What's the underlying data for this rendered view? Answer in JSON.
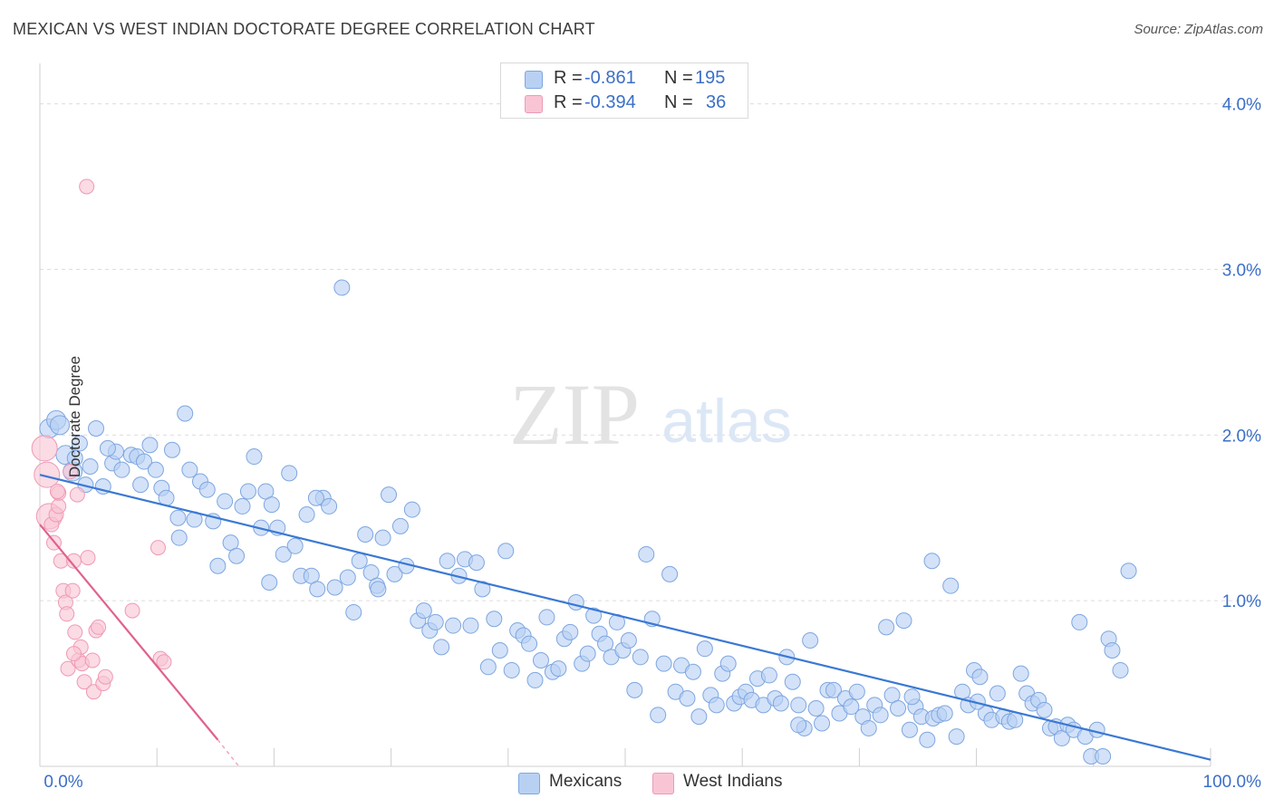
{
  "header": {
    "title": "MEXICAN VS WEST INDIAN DOCTORATE DEGREE CORRELATION CHART",
    "source": "Source: ZipAtlas.com"
  },
  "watermark": {
    "zip": "ZIP",
    "atlas": "atlas"
  },
  "stats": [
    {
      "r_label": "R =",
      "r_value": "-0.861",
      "n_label": "N =",
      "n_value": "195",
      "color": "#4a86d8"
    },
    {
      "r_label": "R =",
      "r_value": "-0.394",
      "n_label": "N =",
      "n_value": "36",
      "color": "#e6789c"
    }
  ],
  "legend": [
    {
      "label": "Mexicans",
      "fill": "#b8d1f3",
      "stroke": "#7ea6e0"
    },
    {
      "label": "West Indians",
      "fill": "#f9c5d4",
      "stroke": "#ee9ab5"
    }
  ],
  "chart_data": {
    "type": "scatter",
    "title": "MEXICAN VS WEST INDIAN DOCTORATE DEGREE CORRELATION CHART",
    "xlabel": "",
    "ylabel": "Doctorate Degree",
    "xlim": [
      0,
      100
    ],
    "ylim": [
      0,
      4.2
    ],
    "x_tick_labels": [
      "0.0%",
      "100.0%"
    ],
    "y_ticks": [
      1.0,
      2.0,
      3.0,
      4.0
    ],
    "y_tick_labels": [
      "1.0%",
      "2.0%",
      "3.0%",
      "4.0%"
    ],
    "grid": true,
    "series": [
      {
        "name": "Mexicans",
        "color": "#4a86d8",
        "fill": "#b8d1f3",
        "trend": {
          "x": [
            0,
            100
          ],
          "y": [
            1.76,
            0.04
          ]
        },
        "points": [
          [
            0.8,
            2.04
          ],
          [
            1.4,
            2.09
          ],
          [
            1.7,
            2.06
          ],
          [
            2.2,
            1.88
          ],
          [
            3.4,
            1.95
          ],
          [
            2.8,
            1.78
          ],
          [
            3.9,
            1.7
          ],
          [
            4.3,
            1.81
          ],
          [
            4.8,
            2.04
          ],
          [
            5.4,
            1.69
          ],
          [
            6.2,
            1.83
          ],
          [
            6.5,
            1.9
          ],
          [
            7.0,
            1.79
          ],
          [
            7.8,
            1.88
          ],
          [
            8.3,
            1.87
          ],
          [
            8.6,
            1.7
          ],
          [
            8.9,
            1.84
          ],
          [
            9.4,
            1.94
          ],
          [
            9.9,
            1.79
          ],
          [
            10.4,
            1.68
          ],
          [
            10.8,
            1.62
          ],
          [
            11.3,
            1.91
          ],
          [
            11.9,
            1.38
          ],
          [
            12.4,
            2.13
          ],
          [
            12.8,
            1.79
          ],
          [
            13.2,
            1.49
          ],
          [
            13.7,
            1.72
          ],
          [
            14.3,
            1.67
          ],
          [
            14.8,
            1.48
          ],
          [
            15.2,
            1.21
          ],
          [
            15.8,
            1.6
          ],
          [
            16.3,
            1.35
          ],
          [
            16.8,
            1.27
          ],
          [
            17.3,
            1.57
          ],
          [
            17.8,
            1.66
          ],
          [
            18.3,
            1.87
          ],
          [
            18.9,
            1.44
          ],
          [
            19.3,
            1.66
          ],
          [
            19.8,
            1.58
          ],
          [
            20.3,
            1.44
          ],
          [
            20.8,
            1.28
          ],
          [
            21.3,
            1.77
          ],
          [
            21.8,
            1.33
          ],
          [
            22.3,
            1.15
          ],
          [
            22.8,
            1.52
          ],
          [
            23.2,
            1.15
          ],
          [
            23.7,
            1.07
          ],
          [
            24.2,
            1.62
          ],
          [
            24.7,
            1.57
          ],
          [
            25.2,
            1.08
          ],
          [
            25.8,
            2.89
          ],
          [
            26.3,
            1.14
          ],
          [
            26.8,
            0.93
          ],
          [
            27.3,
            1.24
          ],
          [
            27.8,
            1.4
          ],
          [
            28.3,
            1.17
          ],
          [
            28.8,
            1.09
          ],
          [
            29.3,
            1.38
          ],
          [
            29.8,
            1.64
          ],
          [
            30.3,
            1.16
          ],
          [
            30.8,
            1.45
          ],
          [
            31.3,
            1.21
          ],
          [
            31.8,
            1.55
          ],
          [
            32.3,
            0.88
          ],
          [
            32.8,
            0.94
          ],
          [
            33.3,
            0.82
          ],
          [
            33.8,
            0.87
          ],
          [
            34.3,
            0.72
          ],
          [
            34.8,
            1.24
          ],
          [
            35.3,
            0.85
          ],
          [
            35.8,
            1.15
          ],
          [
            36.3,
            1.25
          ],
          [
            36.8,
            0.85
          ],
          [
            37.3,
            1.23
          ],
          [
            37.8,
            1.07
          ],
          [
            38.3,
            0.6
          ],
          [
            38.8,
            0.89
          ],
          [
            39.3,
            0.7
          ],
          [
            39.8,
            1.3
          ],
          [
            40.3,
            0.58
          ],
          [
            40.8,
            0.82
          ],
          [
            41.3,
            0.79
          ],
          [
            41.8,
            0.74
          ],
          [
            42.3,
            0.52
          ],
          [
            42.8,
            0.64
          ],
          [
            43.3,
            0.9
          ],
          [
            43.8,
            0.57
          ],
          [
            44.3,
            0.59
          ],
          [
            44.8,
            0.77
          ],
          [
            45.3,
            0.81
          ],
          [
            45.8,
            0.99
          ],
          [
            46.3,
            0.62
          ],
          [
            46.8,
            0.68
          ],
          [
            47.3,
            0.91
          ],
          [
            47.8,
            0.8
          ],
          [
            48.3,
            0.74
          ],
          [
            48.8,
            0.66
          ],
          [
            49.3,
            0.87
          ],
          [
            49.8,
            0.7
          ],
          [
            50.3,
            0.76
          ],
          [
            50.8,
            0.46
          ],
          [
            51.3,
            0.66
          ],
          [
            51.8,
            1.28
          ],
          [
            52.3,
            0.89
          ],
          [
            52.8,
            0.31
          ],
          [
            53.3,
            0.62
          ],
          [
            53.8,
            1.16
          ],
          [
            54.3,
            0.45
          ],
          [
            54.8,
            0.61
          ],
          [
            55.3,
            0.41
          ],
          [
            55.8,
            0.57
          ],
          [
            56.3,
            0.3
          ],
          [
            56.8,
            0.71
          ],
          [
            57.3,
            0.43
          ],
          [
            57.8,
            0.37
          ],
          [
            58.3,
            0.56
          ],
          [
            58.8,
            0.62
          ],
          [
            59.3,
            0.38
          ],
          [
            59.8,
            0.42
          ],
          [
            60.3,
            0.45
          ],
          [
            60.8,
            0.4
          ],
          [
            61.3,
            0.53
          ],
          [
            61.8,
            0.37
          ],
          [
            62.3,
            0.55
          ],
          [
            62.8,
            0.41
          ],
          [
            63.3,
            0.38
          ],
          [
            63.8,
            0.66
          ],
          [
            64.3,
            0.51
          ],
          [
            64.8,
            0.37
          ],
          [
            65.3,
            0.23
          ],
          [
            65.8,
            0.76
          ],
          [
            66.3,
            0.35
          ],
          [
            66.8,
            0.26
          ],
          [
            67.3,
            0.46
          ],
          [
            67.8,
            0.46
          ],
          [
            68.3,
            0.32
          ],
          [
            68.8,
            0.41
          ],
          [
            69.3,
            0.36
          ],
          [
            69.8,
            0.45
          ],
          [
            70.3,
            0.3
          ],
          [
            70.8,
            0.23
          ],
          [
            71.3,
            0.37
          ],
          [
            71.8,
            0.31
          ],
          [
            72.3,
            0.84
          ],
          [
            72.8,
            0.43
          ],
          [
            73.3,
            0.35
          ],
          [
            73.8,
            0.88
          ],
          [
            74.3,
            0.22
          ],
          [
            74.8,
            0.36
          ],
          [
            75.3,
            0.3
          ],
          [
            75.8,
            0.16
          ],
          [
            76.3,
            0.29
          ],
          [
            76.8,
            0.31
          ],
          [
            77.3,
            0.32
          ],
          [
            77.8,
            1.09
          ],
          [
            78.3,
            0.18
          ],
          [
            78.8,
            0.45
          ],
          [
            79.3,
            0.37
          ],
          [
            79.8,
            0.58
          ],
          [
            80.3,
            0.54
          ],
          [
            80.8,
            0.32
          ],
          [
            81.3,
            0.28
          ],
          [
            81.8,
            0.44
          ],
          [
            82.3,
            0.3
          ],
          [
            82.8,
            0.27
          ],
          [
            83.3,
            0.28
          ],
          [
            83.8,
            0.56
          ],
          [
            84.3,
            0.44
          ],
          [
            84.8,
            0.38
          ],
          [
            85.3,
            0.4
          ],
          [
            85.8,
            0.34
          ],
          [
            86.3,
            0.23
          ],
          [
            86.8,
            0.24
          ],
          [
            87.3,
            0.17
          ],
          [
            87.8,
            0.25
          ],
          [
            88.3,
            0.22
          ],
          [
            88.8,
            0.87
          ],
          [
            89.3,
            0.18
          ],
          [
            89.8,
            0.06
          ],
          [
            90.3,
            0.22
          ],
          [
            90.8,
            0.06
          ],
          [
            91.3,
            0.77
          ],
          [
            91.6,
            0.7
          ],
          [
            92.3,
            0.58
          ],
          [
            93.0,
            1.18
          ],
          [
            76.2,
            1.24
          ],
          [
            64.8,
            0.25
          ],
          [
            74.5,
            0.42
          ],
          [
            80.1,
            0.39
          ],
          [
            3.0,
            1.86
          ],
          [
            5.8,
            1.92
          ],
          [
            11.8,
            1.5
          ],
          [
            19.6,
            1.11
          ],
          [
            23.6,
            1.62
          ],
          [
            28.9,
            1.07
          ]
        ]
      },
      {
        "name": "West Indians",
        "color": "#e6789c",
        "fill": "#f9c5d4",
        "trend": {
          "x": [
            0,
            15.2
          ],
          "y": [
            1.46,
            0.16
          ]
        },
        "trend_dashed_to": {
          "x": 17.0,
          "y": 0.0
        },
        "points": [
          [
            0.4,
            1.92
          ],
          [
            0.6,
            1.76
          ],
          [
            0.8,
            1.51
          ],
          [
            1.0,
            1.46
          ],
          [
            1.2,
            1.35
          ],
          [
            1.4,
            1.52
          ],
          [
            1.6,
            1.57
          ],
          [
            1.6,
            1.65
          ],
          [
            1.8,
            1.24
          ],
          [
            2.0,
            1.06
          ],
          [
            2.2,
            0.99
          ],
          [
            2.3,
            0.92
          ],
          [
            2.4,
            0.59
          ],
          [
            2.6,
            1.78
          ],
          [
            2.8,
            1.06
          ],
          [
            2.9,
            1.24
          ],
          [
            3.0,
            0.81
          ],
          [
            3.2,
            1.64
          ],
          [
            3.3,
            0.64
          ],
          [
            3.5,
            0.72
          ],
          [
            3.6,
            0.62
          ],
          [
            3.8,
            0.51
          ],
          [
            4.0,
            3.5
          ],
          [
            4.1,
            1.26
          ],
          [
            4.5,
            0.64
          ],
          [
            4.6,
            0.45
          ],
          [
            4.8,
            0.82
          ],
          [
            5.0,
            0.84
          ],
          [
            5.4,
            0.5
          ],
          [
            5.6,
            0.54
          ],
          [
            7.9,
            0.94
          ],
          [
            10.1,
            1.32
          ],
          [
            10.3,
            0.65
          ],
          [
            10.6,
            0.63
          ],
          [
            1.5,
            1.66
          ],
          [
            2.9,
            0.68
          ]
        ]
      }
    ]
  }
}
